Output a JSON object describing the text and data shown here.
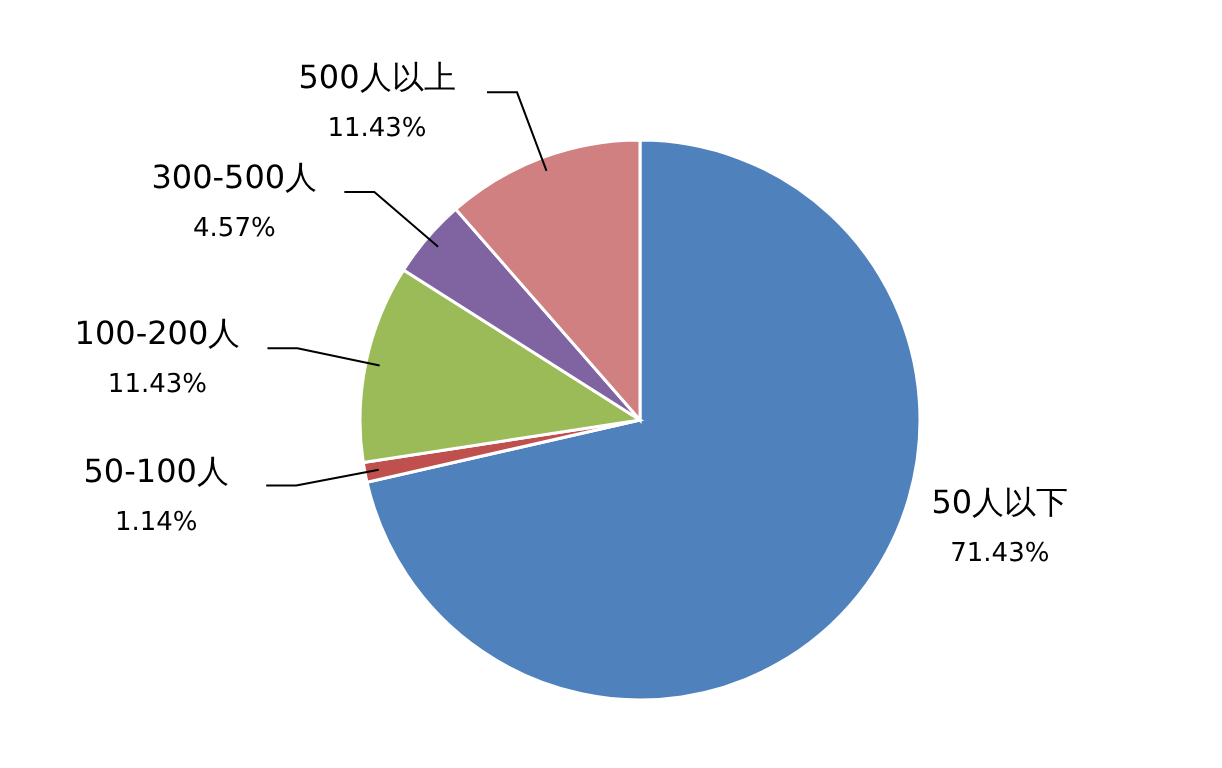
{
  "chart_data": {
    "type": "pie",
    "categories": [
      "50人以下",
      "50-100人",
      "100-200人",
      "300-500人",
      "500人以上"
    ],
    "values": [
      71.43,
      1.14,
      11.43,
      4.57,
      11.43
    ],
    "value_labels": [
      "71.43%",
      "1.14%",
      "11.43%",
      "4.57%",
      "11.43%"
    ],
    "colors": [
      "#4f81bd",
      "#c0504d",
      "#9bbb59",
      "#8064a2",
      "#d08080"
    ]
  }
}
